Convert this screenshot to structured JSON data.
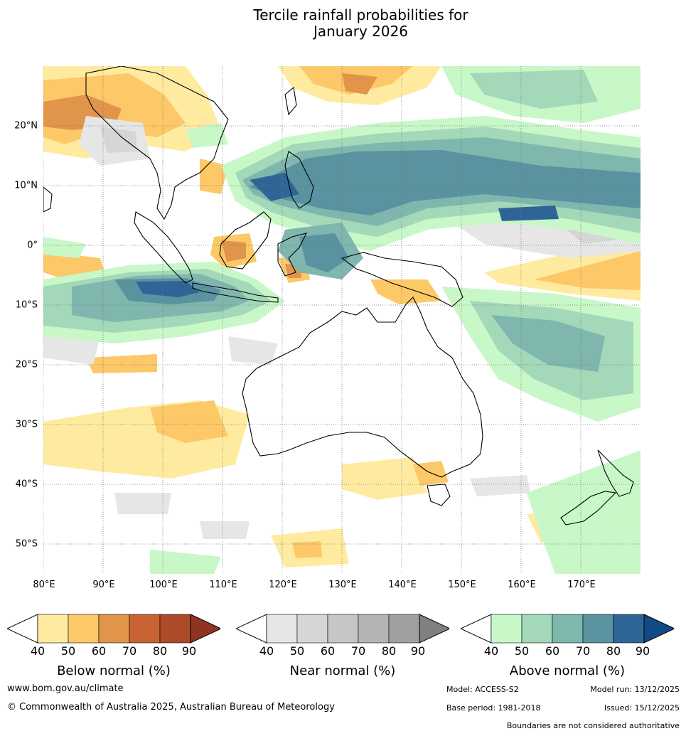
{
  "title_line1": "Tercile rainfall probabilities for",
  "title_line2": "January 2026",
  "lat_labels": [
    "20°N",
    "10°N",
    "0°",
    "10°S",
    "20°S",
    "30°S",
    "40°S",
    "50°S"
  ],
  "lon_labels": [
    "80°E",
    "90°E",
    "100°E",
    "110°E",
    "120°E",
    "130°E",
    "140°E",
    "150°E",
    "160°E",
    "170°E"
  ],
  "colorbars": [
    {
      "title": "Below normal (%)",
      "ticks": [
        "40",
        "50",
        "60",
        "70",
        "80",
        "90"
      ],
      "colors": [
        "#ffffff",
        "#ffeba0",
        "#fdc867",
        "#e0954b",
        "#c96334",
        "#ad4a28",
        "#8f3322"
      ]
    },
    {
      "title": "Near normal (%)",
      "ticks": [
        "40",
        "50",
        "60",
        "70",
        "80",
        "90"
      ],
      "colors": [
        "#ffffff",
        "#e6e6e6",
        "#d6d6d6",
        "#c6c6c6",
        "#b4b4b4",
        "#a0a0a0",
        "#808080"
      ]
    },
    {
      "title": "Above normal (%)",
      "ticks": [
        "40",
        "50",
        "60",
        "70",
        "80",
        "90"
      ],
      "colors": [
        "#ffffff",
        "#c8f7c8",
        "#a3d8b8",
        "#7fb6ae",
        "#5a92a0",
        "#2f6596",
        "#124a86"
      ]
    }
  ],
  "footer": {
    "website": "www.bom.gov.au/climate",
    "copyright": "© Commonwealth of Australia 2025, Australian Bureau of Meteorology",
    "model": "Model: ACCESS-S2",
    "model_run": "Model run: 13/12/2025",
    "base_period": "Base period: 1981-2018",
    "issued": "Issued: 15/12/2025",
    "disclaimer": "Boundaries are not considered authoritative"
  }
}
